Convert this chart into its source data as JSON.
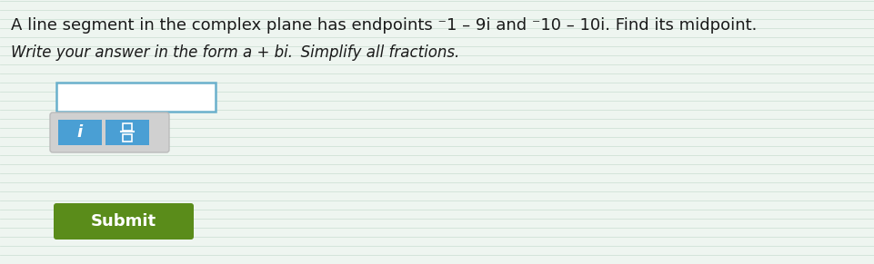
{
  "line1": "A line segment in the complex plane has endpoints ⁻1 – 9i and ⁻10 – 10i. Find its midpoint.",
  "line2_italic": "Write your answer in the form a + bi.",
  "line2_normal": " Simplify all fractions.",
  "submit_text": "Submit",
  "bg_color": "#eef5f0",
  "line_color": "#c8ddd0",
  "input_box_color": "#ffffff",
  "input_box_border": "#6ab0cc",
  "btn_i_color": "#4a9fd4",
  "btn_frac_color": "#4a9fd4",
  "toolbar_bg": "#d8d8d8",
  "submit_color": "#5a8c1a",
  "submit_text_color": "#ffffff",
  "text_color": "#1a1a1a"
}
